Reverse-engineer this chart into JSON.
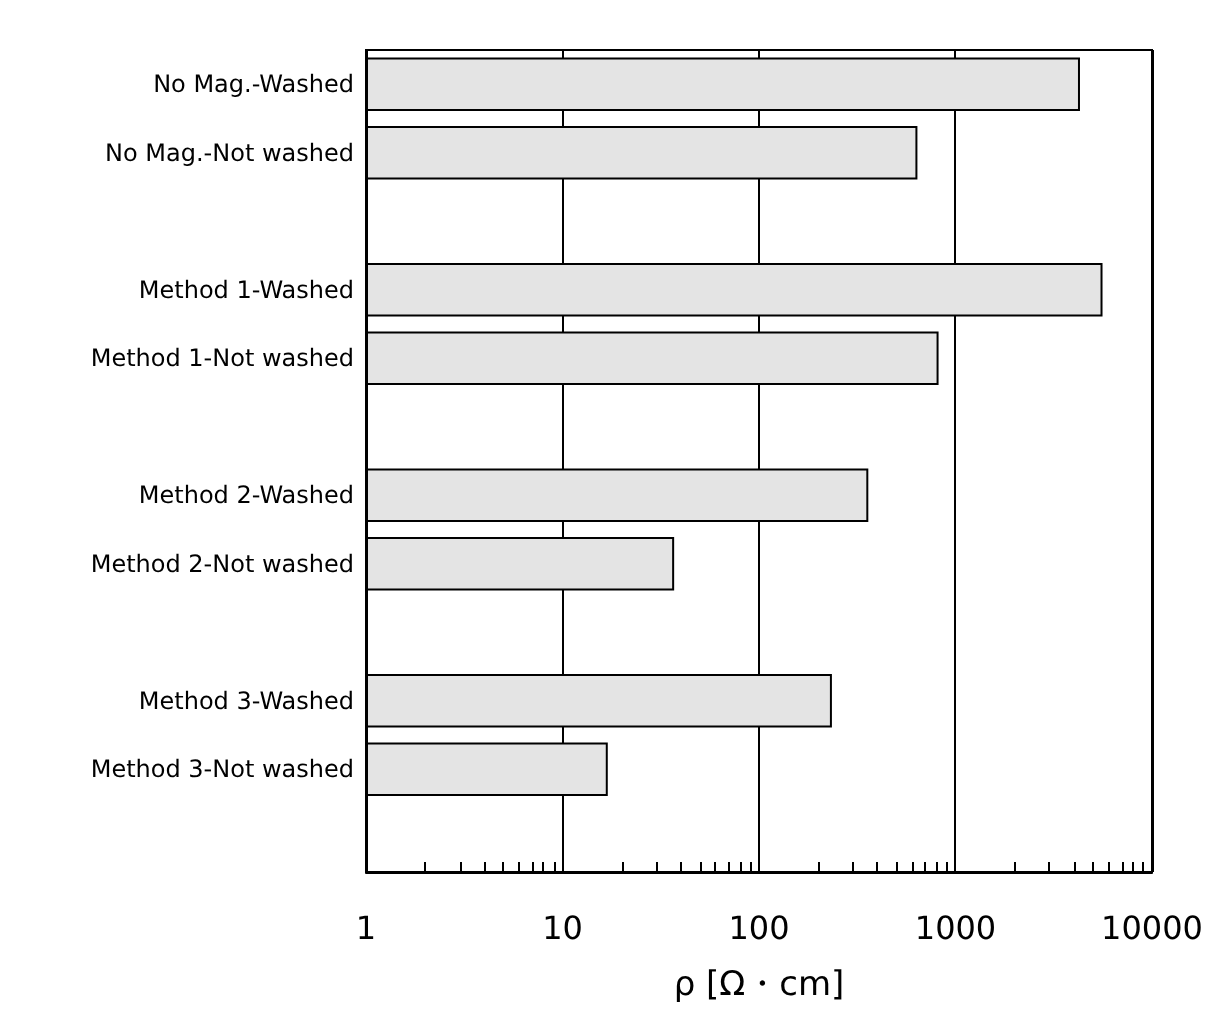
{
  "chart_data": {
    "type": "bar",
    "orientation": "horizontal",
    "xlabel": "ρ [Ω・cm]",
    "categories": [
      "No Mag.-Washed",
      "No Mag.-Not washed",
      null,
      "Method 1-Washed",
      "Method 1-Not washed",
      null,
      "Method 2-Washed",
      "Method 2-Not washed",
      null,
      "Method 3-Washed",
      "Method 3-Not washed",
      null
    ],
    "values": [
      4300,
      640,
      null,
      5600,
      820,
      null,
      360,
      37,
      null,
      235,
      17,
      null
    ],
    "color": "#e4e4e4",
    "log": "x",
    "xlim": [
      1,
      10000
    ],
    "xticks": [
      1,
      10,
      100,
      1000,
      10000
    ],
    "grid": "x"
  }
}
